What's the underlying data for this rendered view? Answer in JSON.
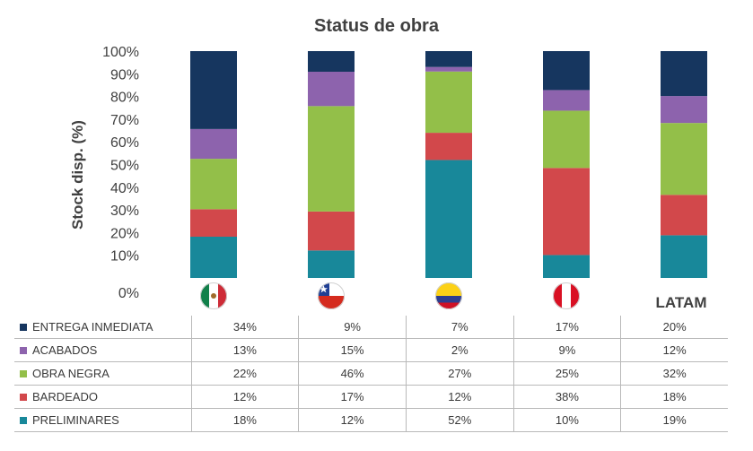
{
  "chart_data": {
    "type": "bar",
    "stacked": true,
    "title": "Status de obra",
    "ylabel": "Stock disp. (%)",
    "ylim": [
      0,
      100
    ],
    "yticks": [
      "0%",
      "10%",
      "20%",
      "30%",
      "40%",
      "50%",
      "60%",
      "70%",
      "80%",
      "90%",
      "100%"
    ],
    "categories": [
      {
        "flag": "mexico-flag"
      },
      {
        "flag": "chile-flag"
      },
      {
        "flag": "colombia-flag"
      },
      {
        "flag": "peru-flag"
      },
      {
        "label": "LATAM"
      }
    ],
    "series": [
      {
        "name": "PRELIMINARES",
        "color": "#18889a",
        "values": [
          18,
          12,
          52,
          10,
          19
        ],
        "labels": [
          "18%",
          "12%",
          "52%",
          "10%",
          "19%"
        ]
      },
      {
        "name": "BARDEADO",
        "color": "#d2484b",
        "values": [
          12,
          17,
          12,
          38,
          18
        ],
        "labels": [
          "12%",
          "17%",
          "12%",
          "38%",
          "18%"
        ]
      },
      {
        "name": "OBRA NEGRA",
        "color": "#93bf49",
        "values": [
          22,
          46,
          27,
          25,
          32
        ],
        "labels": [
          "22%",
          "46%",
          "27%",
          "25%",
          "32%"
        ]
      },
      {
        "name": "ACABADOS",
        "color": "#8d63ad",
        "values": [
          13,
          15,
          2,
          9,
          12
        ],
        "labels": [
          "13%",
          "15%",
          "2%",
          "9%",
          "12%"
        ]
      },
      {
        "name": "ENTREGA INMEDIATA",
        "color": "#16365f",
        "values": [
          34,
          9,
          7,
          17,
          20
        ],
        "labels": [
          "34%",
          "9%",
          "7%",
          "17%",
          "20%"
        ]
      }
    ],
    "table_order": [
      "ENTREGA INMEDIATA",
      "ACABADOS",
      "OBRA NEGRA",
      "BARDEADO",
      "PRELIMINARES"
    ],
    "grid": false,
    "legend": "data table below chart"
  }
}
